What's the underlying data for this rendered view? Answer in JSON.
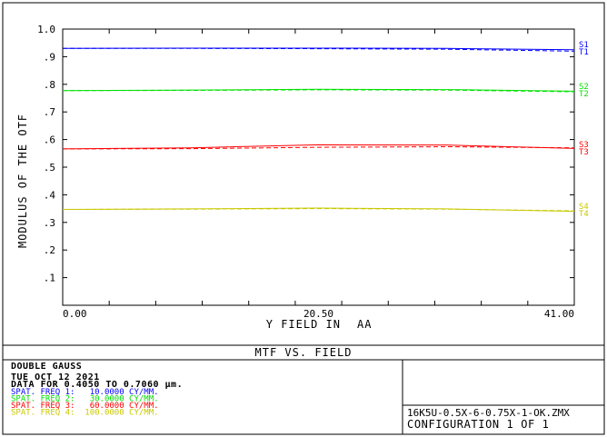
{
  "chart_data": {
    "type": "line",
    "title": "MTF VS. FIELD",
    "xlabel": "Y FIELD IN",
    "xlabel_unit": "AA",
    "ylabel": "MODULUS OF THE OTF",
    "xlim": [
      0,
      41.0
    ],
    "ylim": [
      0,
      1.0
    ],
    "x_tick_labels": [
      "0.00",
      "20.50",
      "41.00"
    ],
    "x_tick_values": [
      0,
      20.5,
      41.0
    ],
    "y_tick_labels": [
      ".1",
      ".2",
      ".3",
      ".4",
      ".5",
      ".6",
      ".7",
      ".8",
      ".9",
      "1.0"
    ],
    "y_tick_values": [
      0.1,
      0.2,
      0.3,
      0.4,
      0.5,
      0.6,
      0.7,
      0.8,
      0.9,
      1.0
    ],
    "grid": false,
    "x": [
      0,
      10.25,
      20.5,
      30.75,
      41.0
    ],
    "series": [
      {
        "name": "S1",
        "style": "solid",
        "color": "#0000ff",
        "values": [
          0.93,
          0.931,
          0.931,
          0.93,
          0.925
        ]
      },
      {
        "name": "T1",
        "style": "dashed",
        "color": "#0000ff",
        "values": [
          0.93,
          0.93,
          0.929,
          0.927,
          0.92
        ]
      },
      {
        "name": "S2",
        "style": "solid",
        "color": "#00e000",
        "values": [
          0.777,
          0.779,
          0.782,
          0.781,
          0.775
        ]
      },
      {
        "name": "T2",
        "style": "dashed",
        "color": "#00e000",
        "values": [
          0.777,
          0.778,
          0.78,
          0.779,
          0.773
        ]
      },
      {
        "name": "S3",
        "style": "solid",
        "color": "#ff0000",
        "values": [
          0.566,
          0.57,
          0.581,
          0.58,
          0.568
        ]
      },
      {
        "name": "T3",
        "style": "dashed",
        "color": "#ff0000",
        "values": [
          0.566,
          0.567,
          0.572,
          0.574,
          0.57
        ]
      },
      {
        "name": "S4",
        "style": "solid",
        "color": "#c8c800",
        "values": [
          0.347,
          0.349,
          0.352,
          0.349,
          0.34
        ]
      },
      {
        "name": "T4",
        "style": "dashed",
        "color": "#c8c800",
        "values": [
          0.347,
          0.348,
          0.35,
          0.348,
          0.342
        ]
      }
    ],
    "legend_labels": [
      {
        "s": "S1",
        "t": "T1",
        "color": "#0000ff",
        "y": 0.928
      },
      {
        "s": "S2",
        "t": "T2",
        "color": "#00e000",
        "y": 0.776
      },
      {
        "s": "S3",
        "t": "T3",
        "color": "#ff0000",
        "y": 0.565
      },
      {
        "s": "S4",
        "t": "T4",
        "color": "#c8c800",
        "y": 0.342
      }
    ]
  },
  "info": {
    "lens_name": "DOUBLE GAUSS",
    "date": "TUE OCT 12 2021",
    "data_range": "DATA FOR 0.4050 TO 0.7060 µm.",
    "frequencies": [
      {
        "label": "SPAT. FREQ 1:   10.0000 CY/MM.",
        "color": "#0000ff"
      },
      {
        "label": "SPAT. FREQ 2:   30.0000 CY/MM.",
        "color": "#00e000"
      },
      {
        "label": "SPAT. FREQ 3:   60.0000 CY/MM.",
        "color": "#ff0000"
      },
      {
        "label": "SPAT. FREQ 4:  100.0000 CY/MM.",
        "color": "#c8c800"
      }
    ],
    "file_name": "16K5U-0.5X-6-0.75X-1-OK.ZMX",
    "configuration": "CONFIGURATION 1 OF 1"
  }
}
